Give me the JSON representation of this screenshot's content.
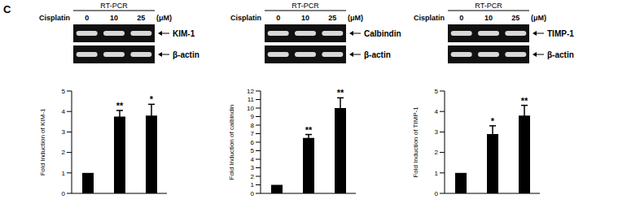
{
  "panel_label": "C",
  "chart_data": [
    {
      "type": "bar",
      "gel": {
        "header": "RT-PCR",
        "treatment": "Cisplatin",
        "doses": [
          "0",
          "10",
          "25"
        ],
        "unit": "(μM)",
        "bands": [
          "KIM-1",
          "β-actin"
        ]
      },
      "y_label": "Fold Induction of KIM-1",
      "categories": [
        null,
        null,
        null
      ],
      "values": [
        1,
        3.75,
        3.8
      ],
      "errors": [
        0,
        0.3,
        0.55
      ],
      "significance": [
        null,
        "**",
        "*"
      ],
      "ylim": [
        0,
        5
      ],
      "yticks": [
        0,
        1,
        2,
        3,
        4,
        5
      ],
      "color": "#000000",
      "tick_labels": "y"
    },
    {
      "type": "bar",
      "gel": {
        "header": "RT-PCR",
        "treatment": "Cisplatin",
        "doses": [
          "0",
          "10",
          "25"
        ],
        "unit": "(μM)",
        "bands": [
          "Calbindin",
          "β-actin"
        ]
      },
      "y_label": "Fold Induction of calbindin",
      "categories": [
        null,
        null,
        null
      ],
      "values": [
        1,
        6.5,
        10
      ],
      "errors": [
        0,
        0.4,
        1.2
      ],
      "significance": [
        null,
        "**",
        "**"
      ],
      "ylim": [
        0,
        12
      ],
      "yticks": [
        0,
        1,
        2,
        3,
        4,
        5,
        6,
        7,
        8,
        9,
        10,
        11,
        12
      ],
      "color": "#000000",
      "tick_labels": "y"
    },
    {
      "type": "bar",
      "gel": {
        "header": "RT-PCR",
        "treatment": "Cisplatin",
        "doses": [
          "0",
          "10",
          "25"
        ],
        "unit": "(μM)",
        "bands": [
          "TIMP-1",
          "β-actin"
        ]
      },
      "y_label": "Fold Induction of TIMP-1",
      "categories": [
        null,
        null,
        null
      ],
      "values": [
        1,
        2.9,
        3.8
      ],
      "errors": [
        0,
        0.4,
        0.5
      ],
      "significance": [
        null,
        "*",
        "**"
      ],
      "ylim": [
        0,
        5
      ],
      "yticks": [
        0,
        1,
        2,
        3,
        4,
        5
      ],
      "color": "#000000",
      "tick_labels": "y"
    }
  ]
}
